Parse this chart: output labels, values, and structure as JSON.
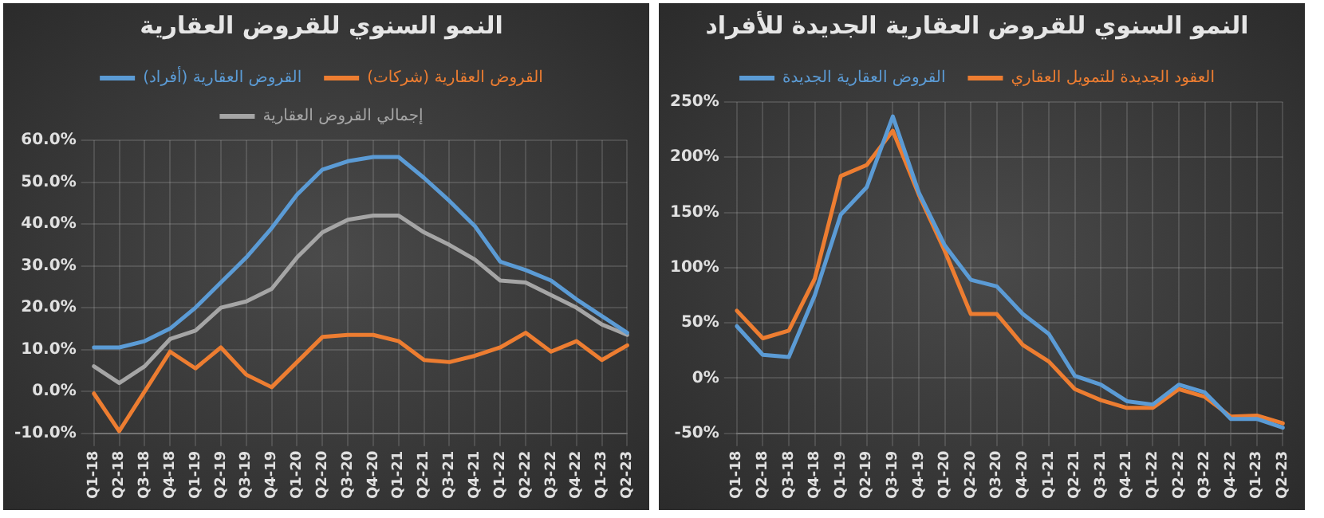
{
  "chart_data": [
    {
      "type": "line",
      "title": "النمو السنوي للقروض العقارية",
      "categories": [
        "Q1-18",
        "Q2-18",
        "Q3-18",
        "Q4-18",
        "Q1-19",
        "Q2-19",
        "Q3-19",
        "Q4-19",
        "Q1-20",
        "Q2-20",
        "Q3-20",
        "Q4-20",
        "Q1-21",
        "Q2-21",
        "Q3-21",
        "Q4-21",
        "Q1-22",
        "Q2-22",
        "Q3-22",
        "Q4-22",
        "Q1-23",
        "Q2-23"
      ],
      "series": [
        {
          "name": "القروض العقارية (أفراد)",
          "color": "#5b9bd5",
          "values": [
            10.5,
            10.5,
            12,
            15,
            20,
            26,
            32,
            39,
            47,
            53,
            55,
            56,
            56,
            51,
            45.5,
            39.5,
            31,
            29,
            26.5,
            22,
            18,
            14
          ]
        },
        {
          "name": "القروض العقارية (شركات)",
          "color": "#ed7d31",
          "values": [
            -0.5,
            -9.5,
            0,
            9.5,
            5.5,
            10.5,
            4,
            1,
            7,
            13,
            13.5,
            13.5,
            12,
            7.5,
            7,
            8.5,
            10.5,
            14,
            9.5,
            12,
            7.5,
            11
          ]
        },
        {
          "name": "إجمالي القروض العقارية",
          "color": "#a5a5a5",
          "values": [
            6,
            2,
            6,
            12.5,
            14.5,
            20,
            21.5,
            24.5,
            32,
            38,
            41,
            42,
            42,
            38,
            35,
            31.5,
            26.5,
            26,
            23,
            20,
            16,
            13.5
          ]
        }
      ],
      "ylim": [
        -10,
        60
      ],
      "yticks": [
        {
          "value": -10,
          "label": "-10.0%"
        },
        {
          "value": 0,
          "label": "0.0%"
        },
        {
          "value": 10,
          "label": "10.0%"
        },
        {
          "value": 20,
          "label": "20.0%"
        },
        {
          "value": 30,
          "label": "30.0%"
        },
        {
          "value": 40,
          "label": "40.0%"
        },
        {
          "value": 50,
          "label": "50.0%"
        },
        {
          "value": 60,
          "label": "60.0%"
        }
      ],
      "grid": true,
      "legend": "top",
      "marker": "none",
      "line_style": "solid"
    },
    {
      "type": "line",
      "title": "النمو السنوي للقروض العقارية الجديدة للأفراد",
      "categories": [
        "Q1-18",
        "Q2-18",
        "Q3-18",
        "Q4-18",
        "Q1-19",
        "Q2-19",
        "Q3-19",
        "Q4-19",
        "Q1-20",
        "Q2-20",
        "Q3-20",
        "Q4-20",
        "Q1-21",
        "Q2-21",
        "Q3-21",
        "Q4-21",
        "Q1-22",
        "Q2-22",
        "Q3-22",
        "Q4-22",
        "Q1-23",
        "Q2-23"
      ],
      "series": [
        {
          "name": "القروض العقارية الجديدة",
          "color": "#5b9bd5",
          "values": [
            47,
            21,
            19,
            75,
            148,
            173,
            237,
            168,
            120,
            89,
            83,
            58,
            40,
            2,
            -6,
            -21,
            -24,
            -6,
            -13,
            -37,
            -37,
            -45
          ]
        },
        {
          "name": "العقود الجديدة للتمويل العقاري",
          "color": "#ed7d31",
          "values": [
            61,
            36,
            43,
            90,
            183,
            193,
            224,
            166,
            115,
            58,
            58,
            30,
            15,
            -10,
            -20,
            -27,
            -27,
            -10,
            -17,
            -35,
            -34,
            -41
          ]
        }
      ],
      "ylim": [
        -50,
        250
      ],
      "yticks": [
        {
          "value": -50,
          "label": "-50%"
        },
        {
          "value": 0,
          "label": "0%"
        },
        {
          "value": 50,
          "label": "50%"
        },
        {
          "value": 100,
          "label": "100%"
        },
        {
          "value": 150,
          "label": "150%"
        },
        {
          "value": 200,
          "label": "200%"
        },
        {
          "value": 250,
          "label": "250%"
        }
      ],
      "grid": true,
      "legend": "top",
      "marker": "none",
      "line_style": "solid"
    }
  ]
}
